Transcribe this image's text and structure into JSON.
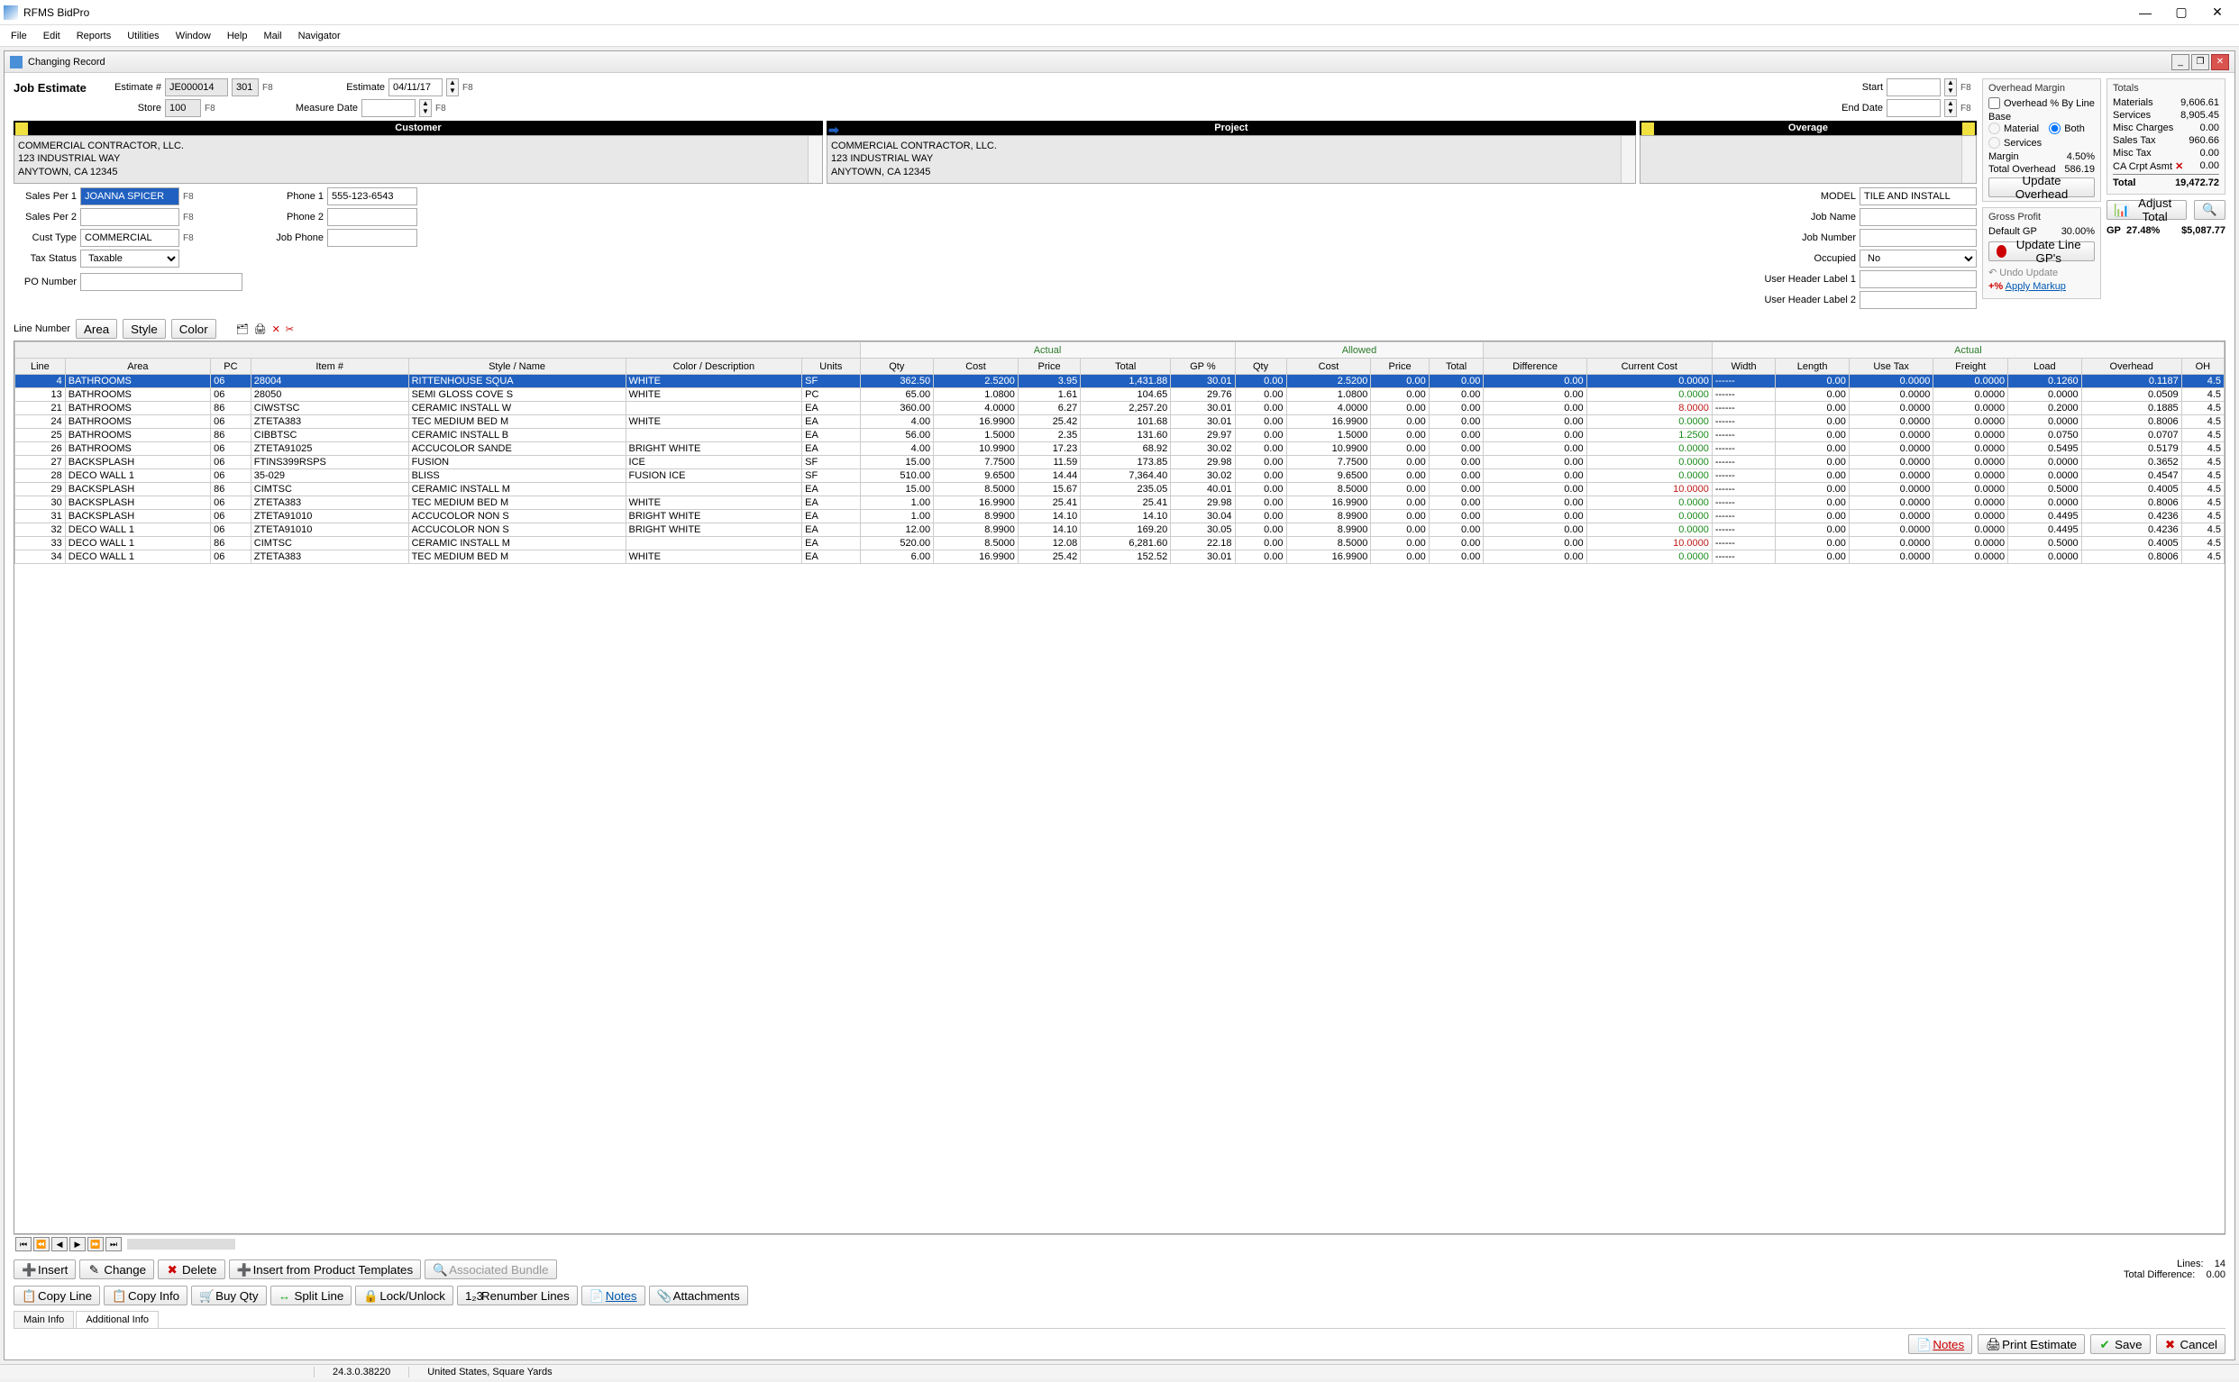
{
  "app": {
    "title": "RFMS BidPro"
  },
  "menu": [
    "File",
    "Edit",
    "Reports",
    "Utilities",
    "Window",
    "Help",
    "Mail",
    "Navigator"
  ],
  "child": {
    "title": "Changing Record"
  },
  "form": {
    "job_estimate_label": "Job Estimate",
    "estimate_num_label": "Estimate #",
    "estimate_num": "JE000014",
    "estimate_suffix": "301",
    "store_label": "Store",
    "store": "100",
    "estimate_date_label": "Estimate",
    "estimate_date": "04/11/17",
    "measure_date_label": "Measure Date",
    "measure_date": "",
    "start_label": "Start",
    "start_date": "",
    "end_label": "End Date",
    "end_date": "",
    "f8": "F8",
    "customer_label": "Customer",
    "project_label": "Project",
    "overage_label": "Overage",
    "customer_lines": "COMMERCIAL CONTRACTOR, LLC.\n123 INDUSTRIAL WAY\nANYTOWN, CA 12345",
    "project_lines": "COMMERCIAL CONTRACTOR, LLC.\n123 INDUSTRIAL WAY\nANYTOWN, CA 12345",
    "sales1_label": "Sales Per 1",
    "sales1": "JOANNA SPICER",
    "sales2_label": "Sales Per 2",
    "sales2": "",
    "cust_type_label": "Cust Type",
    "cust_type": "COMMERCIAL",
    "tax_status_label": "Tax Status",
    "tax_status": "Taxable",
    "po_label": "PO Number",
    "po": "",
    "phone1_label": "Phone 1",
    "phone1": "555-123-6543",
    "phone2_label": "Phone 2",
    "phone2": "",
    "jobphone_label": "Job Phone",
    "jobphone": "",
    "model_label": "MODEL",
    "model": "TILE AND INSTALL",
    "jobname_label": "Job Name",
    "jobname": "",
    "jobnum_label": "Job Number",
    "jobnum": "",
    "occupied_label": "Occupied",
    "occupied": "No",
    "uhl1_label": "User Header Label 1",
    "uhl1": "",
    "uhl2_label": "User Header Label 2",
    "uhl2": ""
  },
  "overhead": {
    "title": "Overhead Margin",
    "by_line_label": "Overhead % By Line",
    "base_label": "Base",
    "material_label": "Material",
    "both_label": "Both",
    "services_label": "Services",
    "margin_label": "Margin",
    "margin": "4.50%",
    "total_label": "Total Overhead",
    "total": "586.19",
    "update_btn": "Update Overhead"
  },
  "gross_profit": {
    "title": "Gross Profit",
    "default_gp_label": "Default GP",
    "default_gp": "30.00%",
    "update_line_btn": "Update Line GP's",
    "undo_btn": "Undo Update",
    "apply_markup_btn": "Apply Markup"
  },
  "totals": {
    "title": "Totals",
    "materials_label": "Materials",
    "materials": "9,606.61",
    "services_label": "Services",
    "services": "8,905.45",
    "misc_charges_label": "Misc Charges",
    "misc_charges": "0.00",
    "sales_tax_label": "Sales Tax",
    "sales_tax": "960.66",
    "misc_tax_label": "Misc Tax",
    "misc_tax": "0.00",
    "ca_crpt_label": "CA Crpt Asmt",
    "ca_crpt": "0.00",
    "total_label": "Total",
    "total": "19,472.72",
    "adjust_btn": "Adjust Total",
    "gp_label": "GP",
    "gp_pct": "27.48%",
    "gp_val": "$5,087.77"
  },
  "filter": {
    "line_number_label": "Line Number",
    "area_btn": "Area",
    "style_btn": "Style",
    "color_btn": "Color"
  },
  "grid": {
    "group_actual": "Actual",
    "group_allowed": "Allowed",
    "group_actual2": "Actual",
    "cols": [
      "Line",
      "Area",
      "PC",
      "Item #",
      "Style / Name",
      "Color / Description",
      "Units",
      "Qty",
      "Cost",
      "Price",
      "Total",
      "GP %",
      "Qty",
      "Cost",
      "Price",
      "Total",
      "Difference",
      "Current Cost",
      "Width",
      "Length",
      "Use Tax",
      "Freight",
      "Load",
      "Overhead",
      "OH"
    ],
    "rows": [
      {
        "line": "4",
        "area": "BATHROOMS",
        "pc": "06",
        "item": "28004",
        "style": "RITTENHOUSE SQUA",
        "color": "WHITE",
        "units": "SF",
        "qty": "362.50",
        "cost": "2.5200",
        "price": "3.95",
        "total": "1,431.88",
        "gp": "30.01",
        "aqty": "0.00",
        "acost": "2.5200",
        "aprice": "0.00",
        "atotal": "0.00",
        "diff": "0.00",
        "cc": "0.0000",
        "cc_cls": "green",
        "w": "------",
        "len": "0.00",
        "utax": "0.0000",
        "frt": "0.0000",
        "load": "0.1260",
        "ovh": "0.1187",
        "oh": "4.5",
        "sel": true
      },
      {
        "line": "13",
        "area": "BATHROOMS",
        "pc": "06",
        "item": "28050",
        "style": "SEMI GLOSS COVE S",
        "color": "WHITE",
        "units": "PC",
        "qty": "65.00",
        "cost": "1.0800",
        "price": "1.61",
        "total": "104.65",
        "gp": "29.76",
        "aqty": "0.00",
        "acost": "1.0800",
        "aprice": "0.00",
        "atotal": "0.00",
        "diff": "0.00",
        "cc": "0.0000",
        "cc_cls": "green",
        "w": "------",
        "len": "0.00",
        "utax": "0.0000",
        "frt": "0.0000",
        "load": "0.0000",
        "ovh": "0.0509",
        "oh": "4.5"
      },
      {
        "line": "21",
        "area": "BATHROOMS",
        "pc": "86",
        "item": "CIWSTSC",
        "style": "CERAMIC  INSTALL W",
        "color": "",
        "units": "EA",
        "qty": "360.00",
        "cost": "4.0000",
        "price": "6.27",
        "total": "2,257.20",
        "gp": "30.01",
        "aqty": "0.00",
        "acost": "4.0000",
        "aprice": "0.00",
        "atotal": "0.00",
        "diff": "0.00",
        "cc": "8.0000",
        "cc_cls": "red",
        "w": "------",
        "len": "0.00",
        "utax": "0.0000",
        "frt": "0.0000",
        "load": "0.2000",
        "ovh": "0.1885",
        "oh": "4.5"
      },
      {
        "line": "24",
        "area": "BATHROOMS",
        "pc": "06",
        "item": "ZTETA383",
        "style": "TEC MEDIUM BED M",
        "color": "WHITE",
        "units": "EA",
        "qty": "4.00",
        "cost": "16.9900",
        "price": "25.42",
        "total": "101.68",
        "gp": "30.01",
        "aqty": "0.00",
        "acost": "16.9900",
        "aprice": "0.00",
        "atotal": "0.00",
        "diff": "0.00",
        "cc": "0.0000",
        "cc_cls": "green",
        "w": "------",
        "len": "0.00",
        "utax": "0.0000",
        "frt": "0.0000",
        "load": "0.0000",
        "ovh": "0.8006",
        "oh": "4.5"
      },
      {
        "line": "25",
        "area": "BATHROOMS",
        "pc": "86",
        "item": "CIBBTSC",
        "style": "CERAMIC  INSTALL B",
        "color": "",
        "units": "EA",
        "qty": "56.00",
        "cost": "1.5000",
        "price": "2.35",
        "total": "131.60",
        "gp": "29.97",
        "aqty": "0.00",
        "acost": "1.5000",
        "aprice": "0.00",
        "atotal": "0.00",
        "diff": "0.00",
        "cc": "1.2500",
        "cc_cls": "green",
        "w": "------",
        "len": "0.00",
        "utax": "0.0000",
        "frt": "0.0000",
        "load": "0.0750",
        "ovh": "0.0707",
        "oh": "4.5"
      },
      {
        "line": "26",
        "area": "BATHROOMS",
        "pc": "06",
        "item": "ZTETA91025",
        "style": "ACCUCOLOR SANDE",
        "color": "BRIGHT WHITE",
        "units": "EA",
        "qty": "4.00",
        "cost": "10.9900",
        "price": "17.23",
        "total": "68.92",
        "gp": "30.02",
        "aqty": "0.00",
        "acost": "10.9900",
        "aprice": "0.00",
        "atotal": "0.00",
        "diff": "0.00",
        "cc": "0.0000",
        "cc_cls": "green",
        "w": "------",
        "len": "0.00",
        "utax": "0.0000",
        "frt": "0.0000",
        "load": "0.5495",
        "ovh": "0.5179",
        "oh": "4.5"
      },
      {
        "line": "27",
        "area": "BACKSPLASH",
        "pc": "06",
        "item": "FTINS399RSPS",
        "style": "FUSION",
        "color": "ICE",
        "units": "SF",
        "qty": "15.00",
        "cost": "7.7500",
        "price": "11.59",
        "total": "173.85",
        "gp": "29.98",
        "aqty": "0.00",
        "acost": "7.7500",
        "aprice": "0.00",
        "atotal": "0.00",
        "diff": "0.00",
        "cc": "0.0000",
        "cc_cls": "green",
        "w": "------",
        "len": "0.00",
        "utax": "0.0000",
        "frt": "0.0000",
        "load": "0.0000",
        "ovh": "0.3652",
        "oh": "4.5"
      },
      {
        "line": "28",
        "area": "DECO WALL 1",
        "pc": "06",
        "item": "35-029",
        "style": "BLISS",
        "color": "FUSION ICE",
        "units": "SF",
        "qty": "510.00",
        "cost": "9.6500",
        "price": "14.44",
        "total": "7,364.40",
        "gp": "30.02",
        "aqty": "0.00",
        "acost": "9.6500",
        "aprice": "0.00",
        "atotal": "0.00",
        "diff": "0.00",
        "cc": "0.0000",
        "cc_cls": "green",
        "w": "------",
        "len": "0.00",
        "utax": "0.0000",
        "frt": "0.0000",
        "load": "0.0000",
        "ovh": "0.4547",
        "oh": "4.5"
      },
      {
        "line": "29",
        "area": "BACKSPLASH",
        "pc": "86",
        "item": "CIMTSC",
        "style": "CERAMIC  INSTALL M",
        "color": "",
        "units": "EA",
        "qty": "15.00",
        "cost": "8.5000",
        "price": "15.67",
        "total": "235.05",
        "gp": "40.01",
        "aqty": "0.00",
        "acost": "8.5000",
        "aprice": "0.00",
        "atotal": "0.00",
        "diff": "0.00",
        "cc": "10.0000",
        "cc_cls": "red",
        "w": "------",
        "len": "0.00",
        "utax": "0.0000",
        "frt": "0.0000",
        "load": "0.5000",
        "ovh": "0.4005",
        "oh": "4.5"
      },
      {
        "line": "30",
        "area": "BACKSPLASH",
        "pc": "06",
        "item": "ZTETA383",
        "style": "TEC MEDIUM BED M",
        "color": "WHITE",
        "units": "EA",
        "qty": "1.00",
        "cost": "16.9900",
        "price": "25.41",
        "total": "25.41",
        "gp": "29.98",
        "aqty": "0.00",
        "acost": "16.9900",
        "aprice": "0.00",
        "atotal": "0.00",
        "diff": "0.00",
        "cc": "0.0000",
        "cc_cls": "green",
        "w": "------",
        "len": "0.00",
        "utax": "0.0000",
        "frt": "0.0000",
        "load": "0.0000",
        "ovh": "0.8006",
        "oh": "4.5"
      },
      {
        "line": "31",
        "area": "BACKSPLASH",
        "pc": "06",
        "item": "ZTETA91010",
        "style": "ACCUCOLOR NON S",
        "color": "BRIGHT WHITE",
        "units": "EA",
        "qty": "1.00",
        "cost": "8.9900",
        "price": "14.10",
        "total": "14.10",
        "gp": "30.04",
        "aqty": "0.00",
        "acost": "8.9900",
        "aprice": "0.00",
        "atotal": "0.00",
        "diff": "0.00",
        "cc": "0.0000",
        "cc_cls": "green",
        "w": "------",
        "len": "0.00",
        "utax": "0.0000",
        "frt": "0.0000",
        "load": "0.4495",
        "ovh": "0.4236",
        "oh": "4.5"
      },
      {
        "line": "32",
        "area": "DECO WALL 1",
        "pc": "06",
        "item": "ZTETA91010",
        "style": "ACCUCOLOR NON S",
        "color": "BRIGHT WHITE",
        "units": "EA",
        "qty": "12.00",
        "cost": "8.9900",
        "price": "14.10",
        "total": "169.20",
        "gp": "30.05",
        "aqty": "0.00",
        "acost": "8.9900",
        "aprice": "0.00",
        "atotal": "0.00",
        "diff": "0.00",
        "cc": "0.0000",
        "cc_cls": "green",
        "w": "------",
        "len": "0.00",
        "utax": "0.0000",
        "frt": "0.0000",
        "load": "0.4495",
        "ovh": "0.4236",
        "oh": "4.5"
      },
      {
        "line": "33",
        "area": "DECO WALL 1",
        "pc": "86",
        "item": "CIMTSC",
        "style": "CERAMIC  INSTALL M",
        "color": "",
        "units": "EA",
        "qty": "520.00",
        "cost": "8.5000",
        "price": "12.08",
        "total": "6,281.60",
        "gp": "22.18",
        "aqty": "0.00",
        "acost": "8.5000",
        "aprice": "0.00",
        "atotal": "0.00",
        "diff": "0.00",
        "cc": "10.0000",
        "cc_cls": "red",
        "w": "------",
        "len": "0.00",
        "utax": "0.0000",
        "frt": "0.0000",
        "load": "0.5000",
        "ovh": "0.4005",
        "oh": "4.5"
      },
      {
        "line": "34",
        "area": "DECO WALL 1",
        "pc": "06",
        "item": "ZTETA383",
        "style": "TEC MEDIUM BED M",
        "color": "WHITE",
        "units": "EA",
        "qty": "6.00",
        "cost": "16.9900",
        "price": "25.42",
        "total": "152.52",
        "gp": "30.01",
        "aqty": "0.00",
        "acost": "16.9900",
        "aprice": "0.00",
        "atotal": "0.00",
        "diff": "0.00",
        "cc": "0.0000",
        "cc_cls": "green",
        "w": "------",
        "len": "0.00",
        "utax": "0.0000",
        "frt": "0.0000",
        "load": "0.0000",
        "ovh": "0.8006",
        "oh": "4.5"
      }
    ]
  },
  "summary": {
    "lines_label": "Lines:",
    "lines": "14",
    "diff_label": "Total Difference:",
    "diff": "0.00"
  },
  "actions": {
    "insert": "Insert",
    "change": "Change",
    "delete": "Delete",
    "insert_template": "Insert from Product Templates",
    "assoc_bundle": "Associated Bundle",
    "copy_line": "Copy Line",
    "copy_info": "Copy Info",
    "buy_qty": "Buy Qty",
    "split_line": "Split Line",
    "lock": "Lock/Unlock",
    "renumber": "Renumber Lines",
    "notes": "Notes",
    "attachments": "Attachments"
  },
  "tabs": {
    "main": "Main Info",
    "additional": "Additional Info"
  },
  "bottom": {
    "notes": "Notes",
    "print": "Print Estimate",
    "save": "Save",
    "cancel": "Cancel"
  },
  "status": {
    "version": "24.3.0.38220",
    "region": "United States, Square Yards"
  }
}
